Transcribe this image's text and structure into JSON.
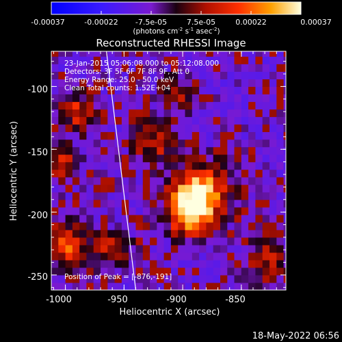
{
  "colorbar": {
    "ticks": [
      "-0.00037",
      "-0.00022",
      "-7.5e-05",
      "7.5e-05",
      "0.00022",
      "0.00037"
    ],
    "units_prefix": "(photons cm",
    "units_exp1": "-2",
    "units_mid": " s",
    "units_exp2": "-1",
    "units_mid2": " asec",
    "units_exp3": "-2",
    "units_suffix": ")",
    "range": [
      -0.00037,
      0.00037
    ]
  },
  "chart_data": {
    "type": "heatmap",
    "title": "Reconstructed RHESSI Image",
    "xlabel": "Heliocentric X (arcsec)",
    "ylabel": "Heliocentric Y (arcsec)",
    "xlim": [
      -1012,
      -812
    ],
    "ylim": [
      -262,
      -72
    ],
    "xticks": [
      -1000,
      -950,
      -900,
      -850
    ],
    "yticks": [
      -100,
      -150,
      -200,
      -250
    ],
    "info_lines": [
      "23-Jan-2015 05:06:08.000 to 05:12:08.000",
      "Detectors: 3F 5F 6F 7F 8F 9F, Att 0",
      "Energy Range: 25.0 - 50.0 keV",
      "Clean    Total counts: 1.52E+04"
    ],
    "peak_label": "Position of Peak = [-876,-191]",
    "peak": [
      -876,
      -191
    ],
    "limb_line": {
      "start": [
        -965,
        -72
      ],
      "end": [
        -940,
        -262
      ]
    },
    "sources": [
      {
        "x": -885,
        "y": -185,
        "peak": 1.0,
        "sigma": 16
      },
      {
        "x": -895,
        "y": -200,
        "peak": 0.8,
        "sigma": 12
      },
      {
        "x": -1000,
        "y": -225,
        "peak": 0.7,
        "sigma": 12
      },
      {
        "x": -990,
        "y": -120,
        "peak": 0.55,
        "sigma": 10
      },
      {
        "x": -1005,
        "y": -160,
        "peak": 0.5,
        "sigma": 10
      },
      {
        "x": -925,
        "y": -145,
        "peak": 0.45,
        "sigma": 12
      },
      {
        "x": -960,
        "y": -230,
        "peak": 0.45,
        "sigma": 10
      },
      {
        "x": -830,
        "y": -240,
        "peak": 0.45,
        "sigma": 12
      },
      {
        "x": -905,
        "y": -105,
        "peak": 0.35,
        "sigma": 10
      }
    ]
  },
  "timestamp": "18-May-2022 06:56"
}
